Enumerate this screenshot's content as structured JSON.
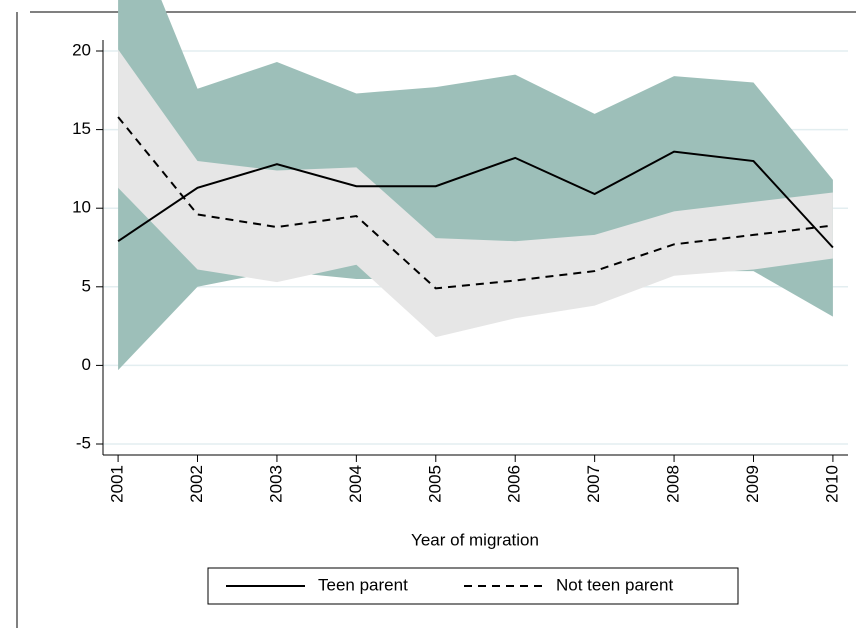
{
  "chart_data": {
    "type": "line",
    "x_label": "Year of migration",
    "x": [
      2001,
      2002,
      2003,
      2004,
      2005,
      2006,
      2007,
      2008,
      2009,
      2010
    ],
    "series": [
      {
        "name": "Teen parent",
        "color": "#000000",
        "dash": "solid",
        "values": [
          7.9,
          11.3,
          12.8,
          11.4,
          11.4,
          13.2,
          10.9,
          13.6,
          13.0,
          7.5
        ],
        "band_color": "#9dbfb9",
        "lower": [
          -0.3,
          5.0,
          6.0,
          5.5,
          5.5,
          6.0,
          6.0,
          6.0,
          6.0,
          3.1
        ],
        "upper": [
          30,
          17.6,
          19.3,
          17.3,
          17.7,
          18.5,
          16.0,
          18.4,
          18.0,
          11.8
        ]
      },
      {
        "name": "Not teen parent",
        "color": "#000000",
        "dash": "dashed",
        "values": [
          15.8,
          9.6,
          8.8,
          9.5,
          4.9,
          5.4,
          6.0,
          7.7,
          8.3,
          8.9
        ],
        "band_color": "#e6e6e6",
        "lower": [
          11.3,
          6.1,
          5.3,
          6.4,
          1.8,
          3.0,
          3.8,
          5.7,
          6.1,
          6.8
        ],
        "upper": [
          20.1,
          13.0,
          12.4,
          12.6,
          8.1,
          7.9,
          8.3,
          9.8,
          10.4,
          11.0
        ]
      }
    ],
    "xlim": [
      2000.81,
      2010.19
    ],
    "xticks": [
      2001,
      2002,
      2003,
      2004,
      2005,
      2006,
      2007,
      2008,
      2009,
      2010
    ],
    "ylim": [
      -5.7,
      20.7
    ],
    "yticks": [
      -5,
      0,
      5,
      10,
      15,
      20
    ],
    "grid": true,
    "legend": "bottom"
  }
}
